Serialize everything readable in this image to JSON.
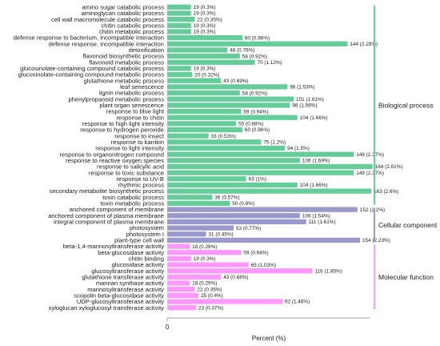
{
  "colors": {
    "bp": "#66cc99",
    "cc": "#9999cc",
    "mf": "#ff99ff",
    "axis": "#888888",
    "label_bg": "#ffffff"
  },
  "chart_data": {
    "type": "bar",
    "orientation": "horizontal",
    "xlabel": "Percent (%)",
    "x_ticks": [
      "0"
    ],
    "groups": [
      {
        "name": "Biological process",
        "color": "#66cc99",
        "items": [
          {
            "label": "amino sugar catabolic process",
            "value": 19,
            "text": "19 (0.3%)"
          },
          {
            "label": "aminoglycan catabolic process",
            "value": 19,
            "text": "19 (0.3%)"
          },
          {
            "label": "cell wall macromolecule catabolic process",
            "value": 22,
            "text": "22 (0.35%)"
          },
          {
            "label": "chitin catabolic process",
            "value": 19,
            "text": "19 (0.3%)"
          },
          {
            "label": "chitin metabolic process",
            "value": 19,
            "text": "19 (0.3%)"
          },
          {
            "label": "defense response to bacterium, incompatible interaction",
            "value": 60,
            "text": "60 (0.96%)"
          },
          {
            "label": "defense response, incompatible interaction",
            "value": 144,
            "text": "144 (2.29%)"
          },
          {
            "label": "detoxification",
            "value": 48,
            "text": "48 (0.76%)"
          },
          {
            "label": "flavonoid biosynthetic process",
            "value": 58,
            "text": "58 (0.92%)"
          },
          {
            "label": "flavonoid metabolic process",
            "value": 70,
            "text": "70 (1.12%)"
          },
          {
            "label": "glucosinolate-containing compound catabolic process",
            "value": 19,
            "text": "19 (0.3%)"
          },
          {
            "label": "glucosinolate-containing compound metabolic process",
            "value": 20,
            "text": "20 (0.32%)"
          },
          {
            "label": "glutathione metabolic process",
            "value": 43,
            "text": "43 (0.69%)"
          },
          {
            "label": "leaf senescence",
            "value": 96,
            "text": "96 (1.53%)"
          },
          {
            "label": "lignin metabolic process",
            "value": 58,
            "text": "58 (0.92%)"
          },
          {
            "label": "phenylpropanoid metabolic process",
            "value": 101,
            "text": "101 (1.61%)"
          },
          {
            "label": "plant organ senescence",
            "value": 98,
            "text": "98 (1.56%)"
          },
          {
            "label": "response to blue light",
            "value": 59,
            "text": "59 (0.94%)"
          },
          {
            "label": "response to chitin",
            "value": 104,
            "text": "104 (1.66%)"
          },
          {
            "label": "response to high light intensity",
            "value": 55,
            "text": "55 (0.88%)"
          },
          {
            "label": "response to hydrogen peroxide",
            "value": 60,
            "text": "60 (0.96%)"
          },
          {
            "label": "response to insect",
            "value": 33,
            "text": "33 (0.53%)"
          },
          {
            "label": "response to karrikin",
            "value": 75,
            "text": "75 (1.2%)"
          },
          {
            "label": "response to light intensity",
            "value": 94,
            "text": "94 (1.5%)"
          },
          {
            "label": "response to organonitrogen compound",
            "value": 149,
            "text": "149 (2.37%)"
          },
          {
            "label": "response to reactive oxygen species",
            "value": 106,
            "text": "106 (1.69%)"
          },
          {
            "label": "response to salicylic acid",
            "value": 164,
            "text": "164 (2.61%)"
          },
          {
            "label": "response to toxic substance",
            "value": 149,
            "text": "149 (2.37%)"
          },
          {
            "label": "response to UV-B",
            "value": 63,
            "text": "63 (1%)"
          },
          {
            "label": "rhythmic process",
            "value": 104,
            "text": "104 (1.66%)"
          },
          {
            "label": "secondary metabolite biosynthetic process",
            "value": 163,
            "text": "163 (2.6%)"
          },
          {
            "label": "toxin catabolic process",
            "value": 36,
            "text": "36 (0.57%)"
          },
          {
            "label": "toxin metabolic process",
            "value": 50,
            "text": "50 (0.8%)"
          }
        ]
      },
      {
        "name": "Cellular component",
        "color": "#9999cc",
        "items": [
          {
            "label": "anchored component of membrane",
            "value": 152,
            "text": "152 (2.2%)"
          },
          {
            "label": "anchored component of plasma membrane",
            "value": 106,
            "text": "106 (1.54%)"
          },
          {
            "label": "integral component of plasma membrane",
            "value": 111,
            "text": "111 (1.61%)"
          },
          {
            "label": "photosystem",
            "value": 53,
            "text": "53 (0.77%)"
          },
          {
            "label": "photosystem I",
            "value": 31,
            "text": "31 (0.45%)"
          },
          {
            "label": "plant-type cell wall",
            "value": 154,
            "text": "154 (2.23%)"
          }
        ]
      },
      {
        "name": "Molecular function",
        "color": "#ff99ff",
        "items": [
          {
            "label": "beta-1,4-mannosyltransferase activity",
            "value": 18,
            "text": "18 (0.29%)"
          },
          {
            "label": "beta-glucosidase activity",
            "value": 59,
            "text": "59 (0.94%)"
          },
          {
            "label": "chitin binding",
            "value": 19,
            "text": "19 (0.3%)"
          },
          {
            "label": "glucosidase activity",
            "value": 65,
            "text": "65 (1.03%)"
          },
          {
            "label": "glucosyltransferase activity",
            "value": 116,
            "text": "116 (1.85%)"
          },
          {
            "label": "glutathione transferase activity",
            "value": 43,
            "text": "43 (0.68%)"
          },
          {
            "label": "mannan synthase activity",
            "value": 18,
            "text": "18 (0.29%)"
          },
          {
            "label": "mannosyltransferase activity",
            "value": 22,
            "text": "22 (0.35%)"
          },
          {
            "label": "scopolin beta-glucosidase activity",
            "value": 25,
            "text": "25 (0.4%)"
          },
          {
            "label": "UDP-glucosyltransferase activity",
            "value": 92,
            "text": "92 (1.46%)"
          },
          {
            "label": "xyloglucan:xyloglucosyl transferase activity",
            "value": 23,
            "text": "23 (0.37%)"
          }
        ]
      }
    ],
    "grid": false
  }
}
